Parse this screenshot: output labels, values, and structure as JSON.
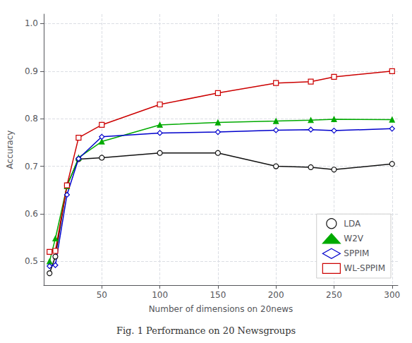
{
  "chart_data": {
    "type": "line",
    "caption": "Fig. 1 Performance on 20 Newsgroups",
    "xlabel": "Number of dimensions on 20news",
    "ylabel": "Accuracy",
    "x": [
      5,
      10,
      20,
      30,
      50,
      100,
      150,
      200,
      230,
      250,
      300
    ],
    "series": [
      {
        "name": "LDA",
        "color": "#111111",
        "marker": "circle-open",
        "values": [
          0.475,
          0.51,
          0.66,
          0.715,
          0.718,
          0.728,
          0.728,
          0.7,
          0.698,
          0.693,
          0.705
        ]
      },
      {
        "name": "W2V",
        "color": "#00aa00",
        "marker": "triangle",
        "values": [
          0.5,
          0.548,
          0.658,
          0.718,
          0.752,
          0.787,
          0.792,
          0.795,
          0.797,
          0.799,
          0.798
        ]
      },
      {
        "name": "SPPIM",
        "color": "#0000cc",
        "marker": "diamond-open",
        "values": [
          0.49,
          0.492,
          0.64,
          0.716,
          0.762,
          0.77,
          0.772,
          0.776,
          0.777,
          0.775,
          0.779
        ]
      },
      {
        "name": "WL-SPPIM",
        "color": "#cc0000",
        "marker": "square-open",
        "values": [
          0.52,
          0.522,
          0.66,
          0.76,
          0.787,
          0.83,
          0.854,
          0.875,
          0.878,
          0.888,
          0.9
        ]
      }
    ],
    "xlim": [
      0,
      305
    ],
    "ylim": [
      0.45,
      1.02
    ],
    "xticks": [
      50,
      100,
      150,
      200,
      250,
      300
    ],
    "yticks": [
      0.5,
      0.6,
      0.7,
      0.8,
      0.9,
      {
        "value": 1,
        "label": "1.0"
      }
    ],
    "grid": true,
    "legend": "lower right"
  }
}
